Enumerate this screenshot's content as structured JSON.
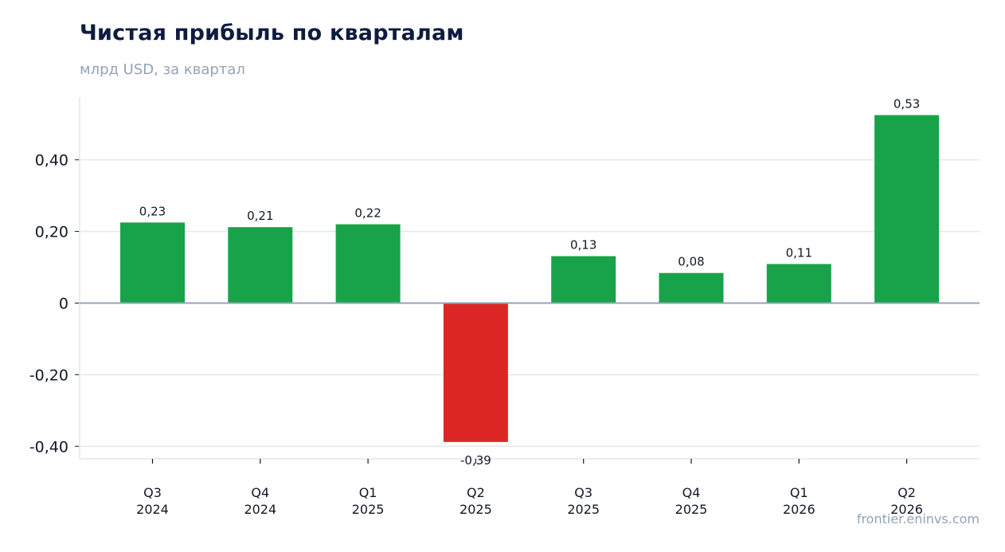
{
  "header": {
    "title": "Чистая прибыль по кварталам",
    "subtitle": "млрд USD, за квартал"
  },
  "footer": {
    "source": "frontier.eninvs.com"
  },
  "colors": {
    "positive": "#18a34a",
    "negative": "#dc2626",
    "grid": "#e5e7eb",
    "zero_line": "#94a3b8"
  },
  "chart_data": {
    "type": "bar",
    "title": "Чистая прибыль по кварталам",
    "subtitle": "млрд USD, за квартал",
    "xlabel": "",
    "ylabel": "",
    "categories": [
      [
        "Q3",
        "2024"
      ],
      [
        "Q4",
        "2024"
      ],
      [
        "Q1",
        "2025"
      ],
      [
        "Q2",
        "2025"
      ],
      [
        "Q3",
        "2025"
      ],
      [
        "Q4",
        "2025"
      ],
      [
        "Q1",
        "2026"
      ],
      [
        "Q2",
        "2026"
      ]
    ],
    "values": [
      0.225,
      0.212,
      0.22,
      -0.388,
      0.131,
      0.084,
      0.109,
      0.525
    ],
    "data_labels": [
      "0,23",
      "0,21",
      "0,22",
      "-0,39",
      "0,13",
      "0,08",
      "0,11",
      "0,53"
    ],
    "ylim": [
      -0.435,
      0.575
    ],
    "yticks": [
      -0.4,
      -0.2,
      0,
      0.2,
      0.4
    ],
    "ytick_labels": [
      "-0,40",
      "-0,20",
      "0",
      "0,20",
      "0,40"
    ],
    "grid": true,
    "legend": "none"
  }
}
